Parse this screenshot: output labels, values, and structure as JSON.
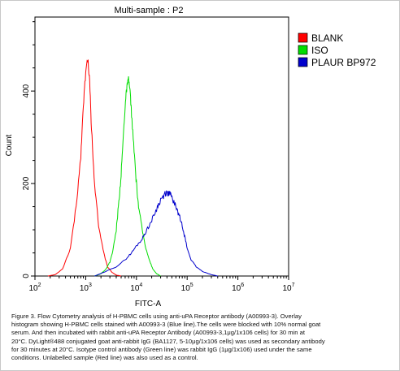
{
  "chart_data": {
    "type": "area",
    "title": "Multi-sample : P2",
    "xlabel": "FITC-A",
    "ylabel": "Count",
    "xscale": "log",
    "xlim": [
      100,
      10000000
    ],
    "ylim": [
      0,
      560
    ],
    "x_ticks": [
      {
        "value": 100,
        "base": "10",
        "exp": "2"
      },
      {
        "value": 1000,
        "base": "10",
        "exp": "3"
      },
      {
        "value": 10000,
        "base": "10",
        "exp": "4"
      },
      {
        "value": 100000,
        "base": "10",
        "exp": "5"
      },
      {
        "value": 1000000,
        "base": "10",
        "exp": "6"
      },
      {
        "value": 10000000,
        "base": "10",
        "exp": "7"
      }
    ],
    "y_ticks": [
      {
        "value": 0,
        "label": "0"
      },
      {
        "value": 200,
        "label": "200"
      },
      {
        "value": 400,
        "label": "400"
      }
    ],
    "legend_position": "top-right",
    "series": [
      {
        "name": "BLANK",
        "color": "#ff0000",
        "x": [
          180,
          250,
          350,
          500,
          650,
          800,
          900,
          1000,
          1100,
          1200,
          1300,
          1500,
          1800,
          2200,
          2700,
          3300,
          4000,
          5000
        ],
        "y": [
          0,
          3,
          15,
          60,
          150,
          260,
          370,
          440,
          470,
          420,
          320,
          200,
          110,
          55,
          20,
          8,
          2,
          0
        ]
      },
      {
        "name": "ISO",
        "color": "#00dd00",
        "x": [
          1500,
          2000,
          2500,
          3000,
          3500,
          4000,
          4500,
          5000,
          5500,
          6000,
          6500,
          7000,
          7500,
          8000,
          9000,
          10000,
          11000,
          13000,
          15000,
          18000,
          21000,
          25000,
          30000
        ],
        "y": [
          0,
          5,
          15,
          30,
          60,
          100,
          160,
          220,
          300,
          370,
          410,
          425,
          400,
          350,
          270,
          200,
          150,
          100,
          65,
          35,
          15,
          5,
          0
        ]
      },
      {
        "name": "PLAUR  BP972",
        "color": "#0000cc",
        "x": [
          1500,
          2500,
          4000,
          6000,
          8000,
          10000,
          13000,
          16000,
          20000,
          25000,
          30000,
          35000,
          40000,
          45000,
          50000,
          60000,
          70000,
          80000,
          90000,
          100000,
          120000,
          150000,
          200000,
          300000,
          400000
        ],
        "y": [
          0,
          10,
          20,
          35,
          50,
          65,
          80,
          100,
          120,
          145,
          165,
          175,
          180,
          178,
          170,
          150,
          130,
          110,
          85,
          60,
          35,
          20,
          10,
          3,
          0
        ]
      }
    ]
  },
  "caption_lines": [
    "Figure 3. Flow Cytometry analysis of H-PBMC cells using anti-uPA Receptor antibody (A00993-3). Overlay",
    "histogram showing H-PBMC cells stained with A00993-3 (Blue line).The cells were blocked with 10% normal goat",
    "serum. And then incubated with rabbit anti-uPA Receptor Antibody (A00993-3,1μg/1x106 cells) for 30 min at",
    "20°C. DyLight®488 conjugated goat anti-rabbit IgG (BA1127, 5-10μg/1x106 cells) was used as secondary antibody",
    "for 30 minutes at 20°C. Isotype control antibody (Green line) was rabbit IgG (1μg/1x106) used under the same",
    "conditions. Unlabelled sample (Red line) was also used as a control."
  ]
}
